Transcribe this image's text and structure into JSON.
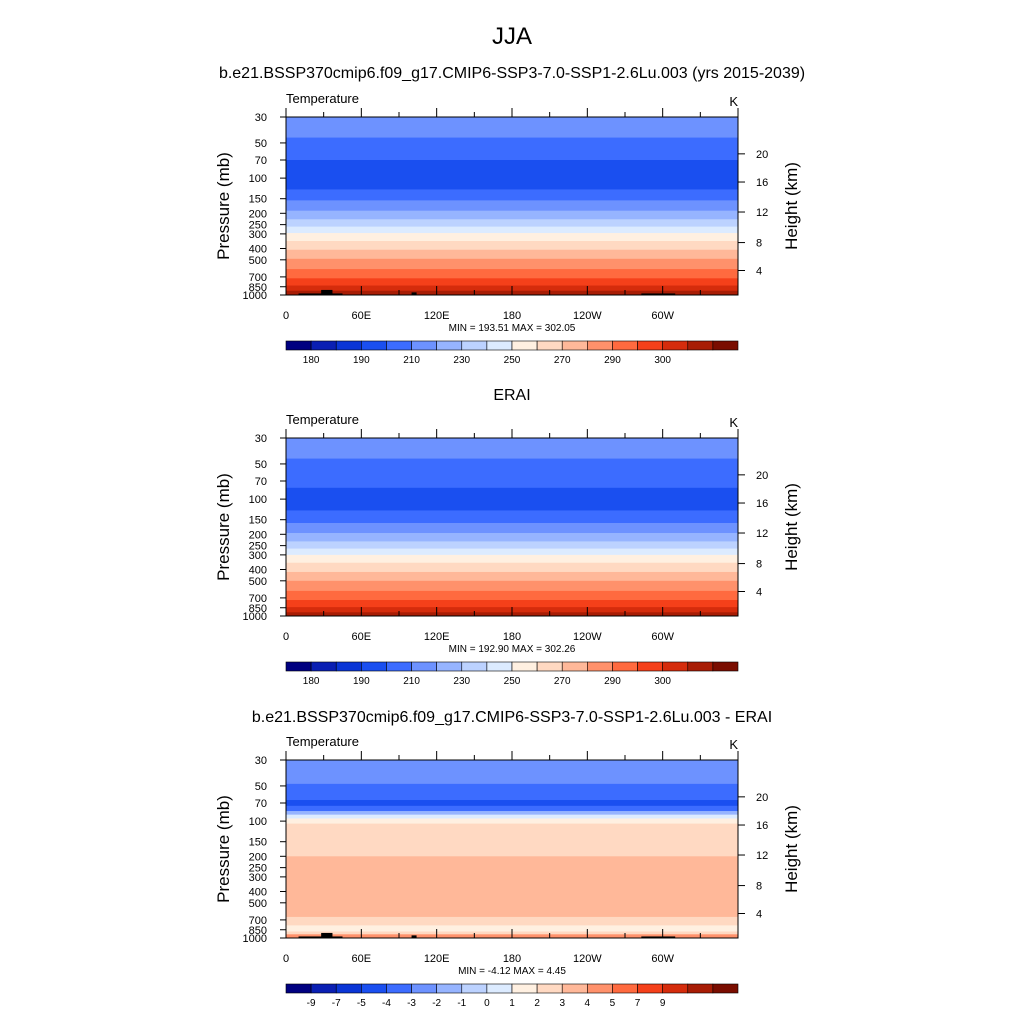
{
  "figure": {
    "title": "JJA"
  },
  "colorbars": {
    "absolute": {
      "colors": [
        "#000080",
        "#0a1fb3",
        "#0a35d6",
        "#1a4ff0",
        "#3c6cff",
        "#6d92ff",
        "#96b4ff",
        "#bcd2ff",
        "#dcebff",
        "#fff0e1",
        "#ffd9c2",
        "#ffb899",
        "#ff916b",
        "#ff6a3f",
        "#f5401a",
        "#d52c0c",
        "#a81d05",
        "#7a0d00"
      ],
      "labels": [
        "180",
        "190",
        "210",
        "230",
        "250",
        "270",
        "290",
        "300"
      ],
      "label_after_index": [
        0,
        2,
        4,
        6,
        8,
        10,
        12,
        14
      ]
    },
    "difference": {
      "colors": [
        "#000080",
        "#0a1fb3",
        "#0a35d6",
        "#1a4ff0",
        "#3c6cff",
        "#6d92ff",
        "#96b4ff",
        "#bcd2ff",
        "#dcebff",
        "#fff0e1",
        "#ffd9c2",
        "#ffb899",
        "#ff916b",
        "#ff6a3f",
        "#f5401a",
        "#d52c0c",
        "#a81d05",
        "#7a0d00"
      ],
      "labels": [
        "-9",
        "-7",
        "-5",
        "-4",
        "-3",
        "-2",
        "-1",
        "0",
        "1",
        "2",
        "3",
        "4",
        "5",
        "7",
        "9"
      ],
      "label_after_index": [
        0,
        1,
        2,
        3,
        4,
        5,
        6,
        7,
        8,
        9,
        10,
        11,
        12,
        13,
        14
      ]
    }
  },
  "chart_data": [
    {
      "type": "heatmap",
      "title": "b.e21.BSSP370cmip6.f09_g17.CMIP6-SSP3-7.0-SSP1-2.6Lu.003 (yrs 2015-2039)",
      "left_label": "Temperature",
      "right_label": "K",
      "ylabel": "Pressure (mb)",
      "ylabel_right": "Height (km)",
      "x_ticks": [
        "0",
        "60E",
        "120E",
        "180",
        "120W",
        "60W"
      ],
      "x_tick_lon": [
        0,
        60,
        120,
        180,
        240,
        300
      ],
      "xlim": [
        0,
        360
      ],
      "y_ticks": [
        "30",
        "50",
        "70",
        "100",
        "150",
        "200",
        "250",
        "300",
        "400",
        "500",
        "700",
        "850",
        "1000"
      ],
      "y_tick_p": [
        30,
        50,
        70,
        100,
        150,
        200,
        250,
        300,
        400,
        500,
        700,
        850,
        1000
      ],
      "ylim": [
        30,
        1000
      ],
      "y_scale": "log",
      "height_ticks": [
        "4",
        "8",
        "12",
        "16",
        "20"
      ],
      "height_tick_p": [
        617,
        356,
        195,
        108,
        62
      ],
      "minmax": "MIN = 193.51  MAX = 302.05",
      "colorbar": "absolute",
      "bands": [
        {
          "p": 30,
          "color": "#6d92ff"
        },
        {
          "p": 45,
          "color": "#3c6cff"
        },
        {
          "p": 70,
          "color": "#1a4ff0"
        },
        {
          "p": 125,
          "color": "#3c6cff"
        },
        {
          "p": 155,
          "color": "#6d92ff"
        },
        {
          "p": 190,
          "color": "#96b4ff"
        },
        {
          "p": 225,
          "color": "#bcd2ff"
        },
        {
          "p": 260,
          "color": "#dcebff"
        },
        {
          "p": 295,
          "color": "#fff0e1"
        },
        {
          "p": 345,
          "color": "#ffd9c2"
        },
        {
          "p": 410,
          "color": "#ffb899"
        },
        {
          "p": 490,
          "color": "#ff916b"
        },
        {
          "p": 600,
          "color": "#ff6a3f"
        },
        {
          "p": 720,
          "color": "#f5401a"
        },
        {
          "p": 830,
          "color": "#d52c0c"
        },
        {
          "p": 920,
          "color": "#a81d05"
        }
      ],
      "terrain": [
        {
          "lon0": 10,
          "lon1": 45,
          "p": 970
        },
        {
          "lon0": 28,
          "lon1": 37,
          "p": 905
        },
        {
          "lon0": 100,
          "lon1": 104,
          "p": 950
        },
        {
          "lon0": 283,
          "lon1": 310,
          "p": 970
        }
      ]
    },
    {
      "type": "heatmap",
      "title": "ERAI",
      "left_label": "Temperature",
      "right_label": "K",
      "ylabel": "Pressure (mb)",
      "ylabel_right": "Height (km)",
      "x_ticks": [
        "0",
        "60E",
        "120E",
        "180",
        "120W",
        "60W"
      ],
      "x_tick_lon": [
        0,
        60,
        120,
        180,
        240,
        300
      ],
      "xlim": [
        0,
        360
      ],
      "y_ticks": [
        "30",
        "50",
        "70",
        "100",
        "150",
        "200",
        "250",
        "300",
        "400",
        "500",
        "700",
        "850",
        "1000"
      ],
      "y_tick_p": [
        30,
        50,
        70,
        100,
        150,
        200,
        250,
        300,
        400,
        500,
        700,
        850,
        1000
      ],
      "ylim": [
        30,
        1000
      ],
      "y_scale": "log",
      "height_ticks": [
        "4",
        "8",
        "12",
        "16",
        "20"
      ],
      "height_tick_p": [
        617,
        356,
        195,
        108,
        62
      ],
      "minmax": "MIN = 192.90  MAX = 302.26",
      "colorbar": "absolute",
      "bands": [
        {
          "p": 30,
          "color": "#6d92ff"
        },
        {
          "p": 45,
          "color": "#3c6cff"
        },
        {
          "p": 80,
          "color": "#1a4ff0"
        },
        {
          "p": 125,
          "color": "#3c6cff"
        },
        {
          "p": 160,
          "color": "#6d92ff"
        },
        {
          "p": 195,
          "color": "#96b4ff"
        },
        {
          "p": 230,
          "color": "#bcd2ff"
        },
        {
          "p": 265,
          "color": "#dcebff"
        },
        {
          "p": 300,
          "color": "#fff0e1"
        },
        {
          "p": 350,
          "color": "#ffd9c2"
        },
        {
          "p": 420,
          "color": "#ffb899"
        },
        {
          "p": 500,
          "color": "#ff916b"
        },
        {
          "p": 610,
          "color": "#ff6a3f"
        },
        {
          "p": 730,
          "color": "#f5401a"
        },
        {
          "p": 840,
          "color": "#d52c0c"
        },
        {
          "p": 930,
          "color": "#a81d05"
        }
      ],
      "terrain": []
    },
    {
      "type": "heatmap",
      "title": "b.e21.BSSP370cmip6.f09_g17.CMIP6-SSP3-7.0-SSP1-2.6Lu.003 - ERAI",
      "left_label": "Temperature",
      "right_label": "K",
      "ylabel": "Pressure (mb)",
      "ylabel_right": "Height (km)",
      "x_ticks": [
        "0",
        "60E",
        "120E",
        "180",
        "120W",
        "60W"
      ],
      "x_tick_lon": [
        0,
        60,
        120,
        180,
        240,
        300
      ],
      "xlim": [
        0,
        360
      ],
      "y_ticks": [
        "30",
        "50",
        "70",
        "100",
        "150",
        "200",
        "250",
        "300",
        "400",
        "500",
        "700",
        "850",
        "1000"
      ],
      "y_tick_p": [
        30,
        50,
        70,
        100,
        150,
        200,
        250,
        300,
        400,
        500,
        700,
        850,
        1000
      ],
      "ylim": [
        30,
        1000
      ],
      "y_scale": "log",
      "height_ticks": [
        "4",
        "8",
        "12",
        "16",
        "20"
      ],
      "height_tick_p": [
        617,
        356,
        195,
        108,
        62
      ],
      "minmax": "MIN =  -4.12  MAX =   4.45",
      "colorbar": "difference",
      "bands": [
        {
          "p": 30,
          "color": "#6d92ff"
        },
        {
          "p": 48,
          "color": "#3c6cff"
        },
        {
          "p": 66,
          "color": "#1a4ff0"
        },
        {
          "p": 74,
          "color": "#3c6cff"
        },
        {
          "p": 82,
          "color": "#96b4ff"
        },
        {
          "p": 88,
          "color": "#dcebff"
        },
        {
          "p": 95,
          "color": "#fff0e1"
        },
        {
          "p": 105,
          "color": "#ffd9c2"
        },
        {
          "p": 200,
          "color": "#ffb899"
        },
        {
          "p": 660,
          "color": "#ffd9c2"
        },
        {
          "p": 780,
          "color": "#fff0e1"
        },
        {
          "p": 880,
          "color": "#ffd9c2"
        },
        {
          "p": 930,
          "color": "#ff916b"
        }
      ],
      "terrain": [
        {
          "lon0": 10,
          "lon1": 45,
          "p": 970
        },
        {
          "lon0": 28,
          "lon1": 37,
          "p": 905
        },
        {
          "lon0": 100,
          "lon1": 104,
          "p": 950
        },
        {
          "lon0": 283,
          "lon1": 310,
          "p": 970
        }
      ]
    }
  ]
}
